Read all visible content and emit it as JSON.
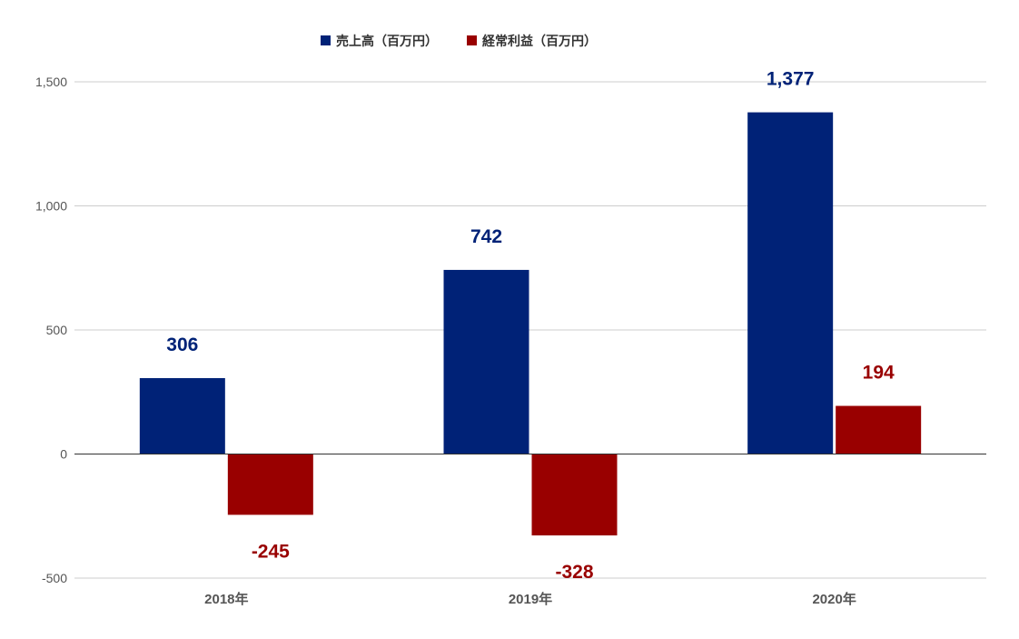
{
  "chart_data": {
    "type": "bar",
    "categories": [
      "2018年",
      "2019年",
      "2020年"
    ],
    "series": [
      {
        "name": "売上高（百万円）",
        "values": [
          306,
          742,
          1377
        ],
        "labels": [
          "306",
          "742",
          "1,377"
        ],
        "color": "#002277"
      },
      {
        "name": "経常利益（百万円）",
        "values": [
          -245,
          -328,
          194
        ],
        "labels": [
          "-245",
          "-328",
          "194"
        ],
        "color": "#990000"
      }
    ],
    "ylim": [
      -500,
      1500
    ],
    "yticks": [
      -500,
      0,
      500,
      1000,
      1500
    ],
    "ytick_labels": [
      "-500",
      "0",
      "500",
      "1,000",
      "1,500"
    ],
    "grid": true,
    "legend_position": "top-center",
    "title": "",
    "xlabel": "",
    "ylabel": ""
  }
}
